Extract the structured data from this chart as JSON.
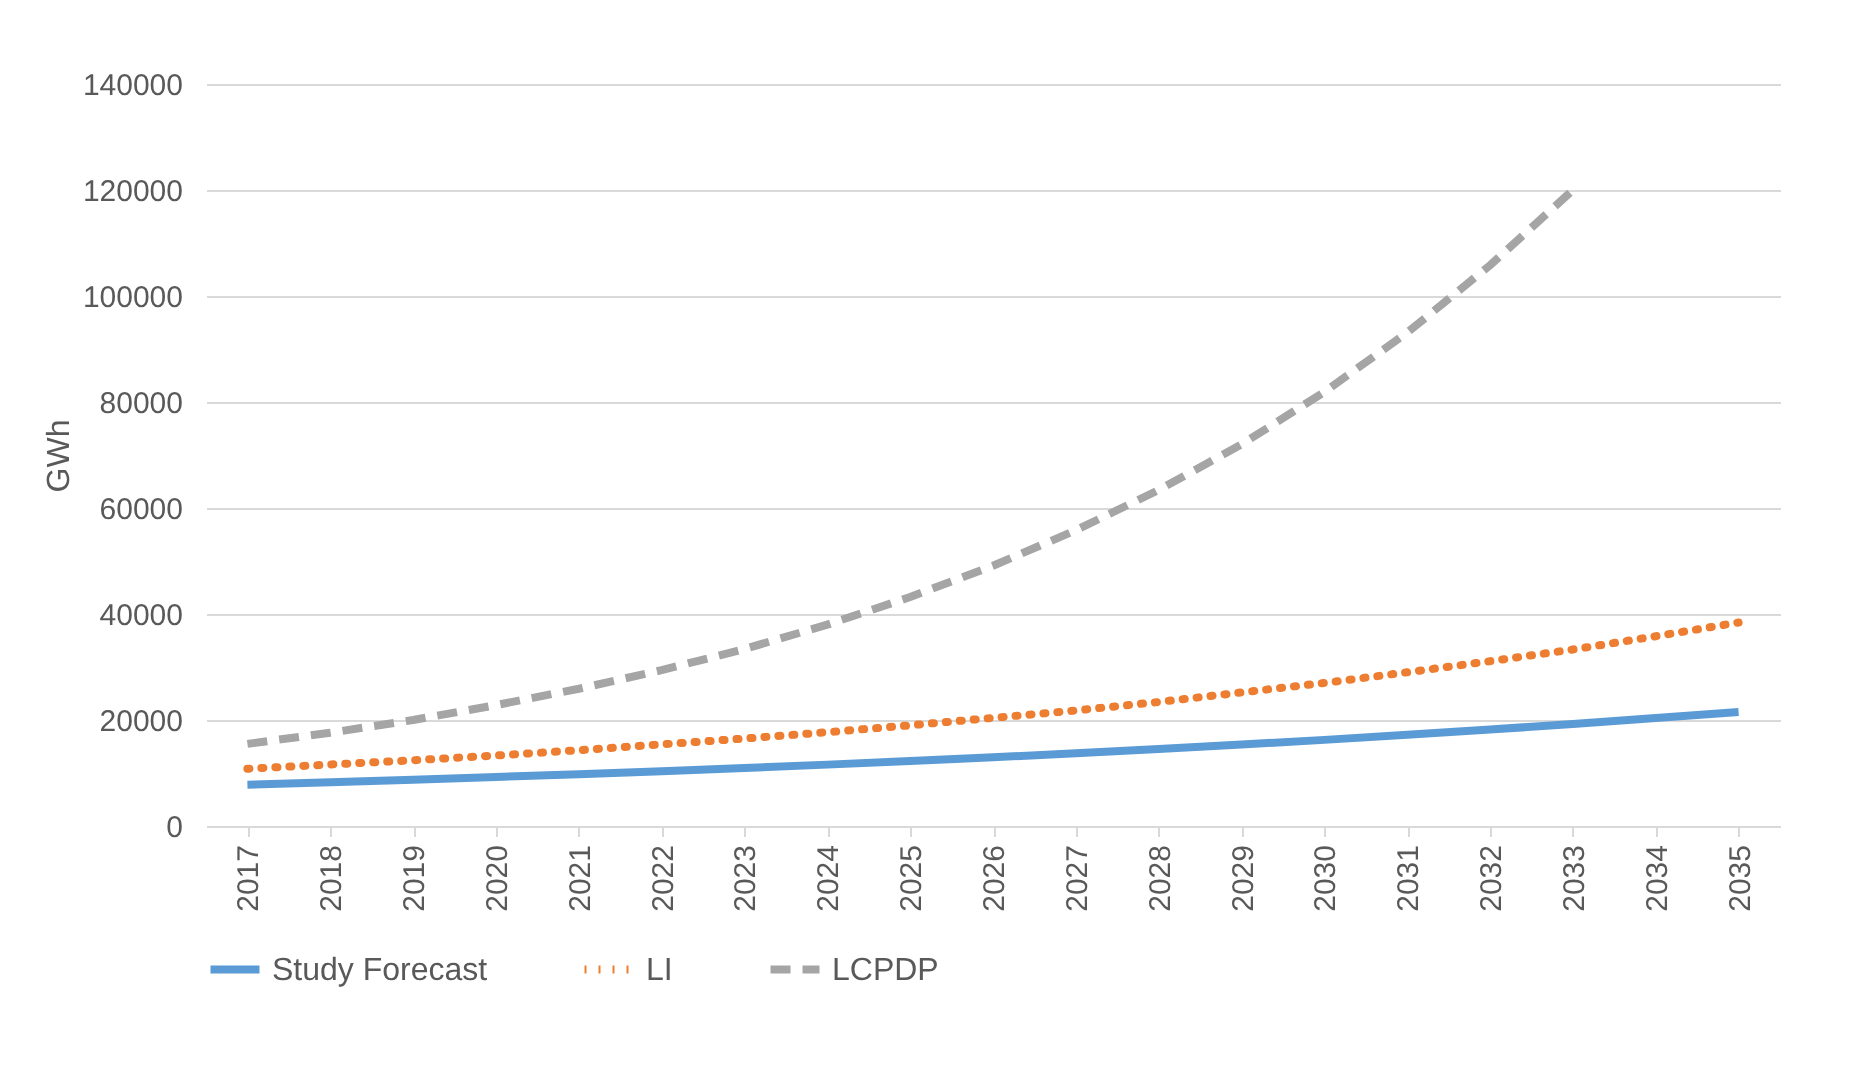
{
  "chart_data": {
    "type": "line",
    "ylabel": "GWh",
    "categories": [
      "2017",
      "2018",
      "2019",
      "2020",
      "2021",
      "2022",
      "2023",
      "2024",
      "2025",
      "2026",
      "2027",
      "2028",
      "2029",
      "2030",
      "2031",
      "2032",
      "2033",
      "2034",
      "2035"
    ],
    "ylim": [
      0,
      140000
    ],
    "yticks": [
      0,
      20000,
      40000,
      60000,
      80000,
      100000,
      120000,
      140000
    ],
    "grid": "y",
    "legend": "bottom",
    "series": [
      {
        "name": "Study Forecast",
        "color": "#5b9bd5",
        "line_style": "solid",
        "values": [
          7800,
          8250,
          8730,
          9240,
          9780,
          10350,
          10950,
          11580,
          12250,
          12960,
          13720,
          14520,
          15360,
          16250,
          17200,
          18200,
          19250,
          20370,
          21500
        ]
      },
      {
        "name": "LI",
        "color": "#ed7d31",
        "line_style": "dotted",
        "values": [
          10800,
          11600,
          12400,
          13300,
          14300,
          15400,
          16500,
          17700,
          19000,
          20400,
          21800,
          23400,
          25200,
          27000,
          29000,
          31100,
          33300,
          35800,
          38400
        ]
      },
      {
        "name": "LCPDP",
        "color": "#a5a5a5",
        "line_style": "dashed",
        "values": [
          15500,
          17600,
          20000,
          22800,
          25900,
          29400,
          33400,
          38000,
          43200,
          49100,
          55800,
          63400,
          72000,
          81900,
          93100,
          105800,
          120000,
          null,
          null
        ]
      }
    ]
  }
}
